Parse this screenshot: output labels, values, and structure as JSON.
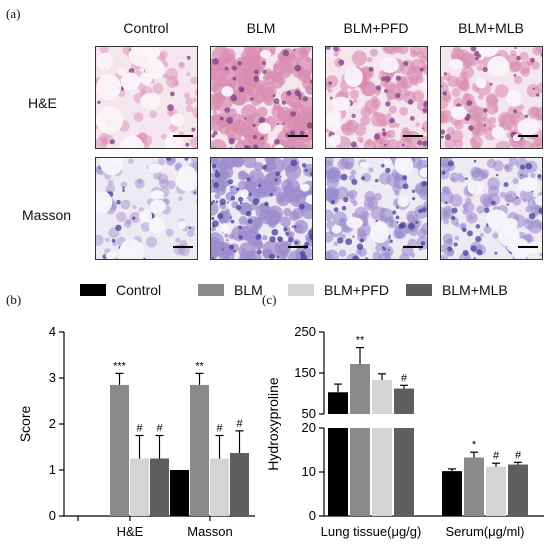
{
  "panel_labels": {
    "a": "(a)",
    "b": "(b)",
    "c": "(c)"
  },
  "histology": {
    "columns": [
      "Control",
      "BLM",
      "BLM+PFD",
      "BLM+MLB"
    ],
    "rows": [
      "H&E",
      "Masson"
    ],
    "stain_colors": {
      "he_bg": "#f5e6ee",
      "he_tissue": "#d98cb0",
      "he_nuclei": "#7a3f86",
      "masson_bg": "#eeeaf4",
      "masson_tissue": "#9b8ccc",
      "masson_dense": "#4a3f9a"
    }
  },
  "legend": [
    "Control",
    "BLM",
    "BLM+PFD",
    "BLM+MLB"
  ],
  "colors": {
    "Control": "#000000",
    "BLM": "#8a8a8a",
    "BLM+PFD": "#d4d4d4",
    "BLM+MLB": "#5e5e5e"
  },
  "chart_data": [
    {
      "type": "bar",
      "panel": "(b)",
      "ylabel": "Score",
      "categories": [
        "H&E",
        "Masson"
      ],
      "ylim": [
        0,
        4
      ],
      "yticks": [
        "0",
        "1",
        "2",
        "3",
        "4"
      ],
      "series": [
        {
          "name": "Control",
          "values": [
            0,
            1.0
          ],
          "errors": [
            0,
            0
          ],
          "marks": [
            "",
            ""
          ]
        },
        {
          "name": "BLM",
          "values": [
            2.85,
            2.85
          ],
          "errors": [
            0.25,
            0.25
          ],
          "marks": [
            "***",
            "**"
          ]
        },
        {
          "name": "BLM+PFD",
          "values": [
            1.25,
            1.25
          ],
          "errors": [
            0.5,
            0.5
          ],
          "marks": [
            "#",
            "#"
          ]
        },
        {
          "name": "BLM+MLB",
          "values": [
            1.25,
            1.37
          ],
          "errors": [
            0.5,
            0.48
          ],
          "marks": [
            "#",
            "#"
          ]
        }
      ]
    },
    {
      "type": "bar",
      "panel": "(c)",
      "ylabel": "Hydroxyproline",
      "categories": [
        "Lung tissue(μg/g)",
        "Serum(μg/ml)"
      ],
      "broken_axis": {
        "lower": [
          0,
          20
        ],
        "upper": [
          50,
          250
        ]
      },
      "yticks_lower": [
        "0",
        "10",
        "20"
      ],
      "yticks_upper": [
        "50",
        "150",
        "250"
      ],
      "series": [
        {
          "name": "Control",
          "values": [
            103,
            10.2
          ],
          "errors": [
            20,
            0.5
          ],
          "marks": [
            "",
            ""
          ]
        },
        {
          "name": "BLM",
          "values": [
            172,
            13.3
          ],
          "errors": [
            40,
            1.2
          ],
          "marks": [
            "**",
            "*"
          ]
        },
        {
          "name": "BLM+PFD",
          "values": [
            133,
            11.2
          ],
          "errors": [
            15,
            0.8
          ],
          "marks": [
            "",
            "#"
          ]
        },
        {
          "name": "BLM+MLB",
          "values": [
            112,
            11.7
          ],
          "errors": [
            8,
            0.5
          ],
          "marks": [
            "#",
            "#"
          ]
        }
      ]
    }
  ]
}
